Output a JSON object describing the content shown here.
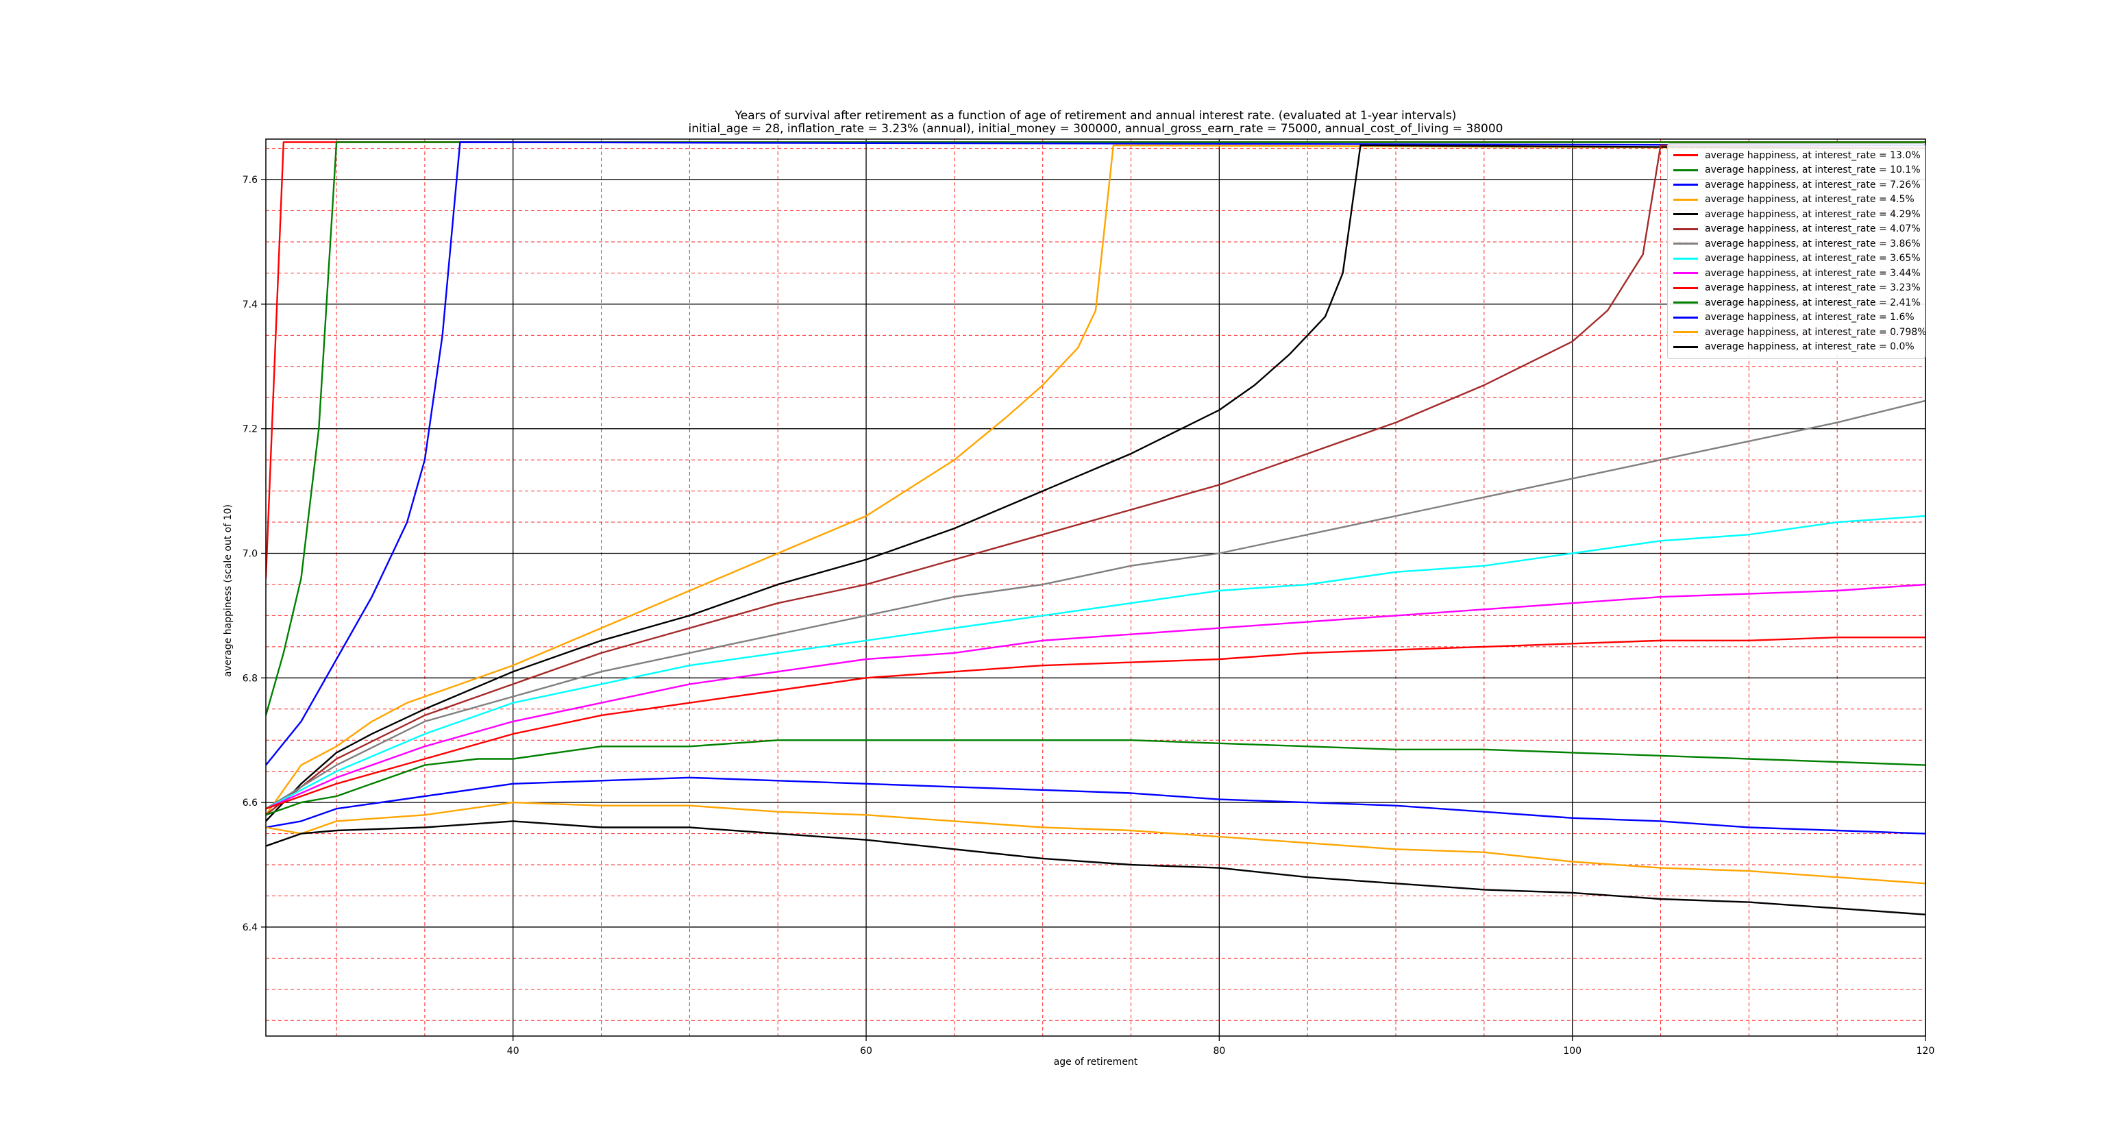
{
  "chart_data": {
    "type": "line",
    "title": "Years of survival after retirement as a function of age of retirement and annual interest rate. (evaluated at 1-year intervals)",
    "subtitle": "initial_age = 28, inflation_rate = 3.23% (annual), initial_money = 300000, annual_gross_earn_rate = 75000, annual_cost_of_living = 38000",
    "xlabel": "age of retirement",
    "ylabel": "average happiness (scale out of 10)",
    "xlim": [
      26,
      120
    ],
    "ylim": [
      6.225,
      7.665
    ],
    "xticks": [
      40,
      60,
      80,
      100,
      120
    ],
    "yticks": [
      6.4,
      6.6,
      6.8,
      7.0,
      7.2,
      7.4,
      7.6
    ],
    "x_minor_grid_step": 5,
    "y_minor_grid_step": 0.05,
    "grid": true,
    "legend_position": "top-right",
    "series": [
      {
        "name": "average happiness, at interest_rate = 13.0%",
        "color": "#ff0000",
        "points": [
          [
            26,
            6.96
          ],
          [
            27,
            7.66
          ],
          [
            120,
            7.66
          ]
        ]
      },
      {
        "name": "average happiness, at interest_rate = 10.1%",
        "color": "#008000",
        "points": [
          [
            26,
            6.74
          ],
          [
            27,
            6.84
          ],
          [
            28,
            6.96
          ],
          [
            29,
            7.2
          ],
          [
            30,
            7.66
          ],
          [
            120,
            7.66
          ]
        ]
      },
      {
        "name": "average happiness, at interest_rate = 7.26%",
        "color": "#0000ff",
        "points": [
          [
            26,
            6.66
          ],
          [
            28,
            6.73
          ],
          [
            30,
            6.83
          ],
          [
            32,
            6.93
          ],
          [
            33,
            6.99
          ],
          [
            34,
            7.05
          ],
          [
            35,
            7.15
          ],
          [
            36,
            7.35
          ],
          [
            37,
            7.66
          ],
          [
            120,
            7.655
          ]
        ]
      },
      {
        "name": "average happiness, at interest_rate = 4.5%",
        "color": "#ffa500",
        "points": [
          [
            26,
            6.58
          ],
          [
            28,
            6.66
          ],
          [
            30,
            6.69
          ],
          [
            32,
            6.73
          ],
          [
            34,
            6.76
          ],
          [
            36,
            6.78
          ],
          [
            40,
            6.82
          ],
          [
            45,
            6.88
          ],
          [
            50,
            6.94
          ],
          [
            55,
            7.0
          ],
          [
            60,
            7.06
          ],
          [
            65,
            7.15
          ],
          [
            68,
            7.22
          ],
          [
            70,
            7.27
          ],
          [
            72,
            7.33
          ],
          [
            73,
            7.39
          ],
          [
            74,
            7.655
          ],
          [
            120,
            7.65
          ]
        ]
      },
      {
        "name": "average happiness, at interest_rate = 4.29%",
        "color": "#000000",
        "points": [
          [
            26,
            6.57
          ],
          [
            28,
            6.63
          ],
          [
            30,
            6.68
          ],
          [
            32,
            6.71
          ],
          [
            35,
            6.75
          ],
          [
            40,
            6.81
          ],
          [
            45,
            6.86
          ],
          [
            50,
            6.9
          ],
          [
            55,
            6.95
          ],
          [
            60,
            6.99
          ],
          [
            65,
            7.04
          ],
          [
            70,
            7.1
          ],
          [
            75,
            7.16
          ],
          [
            80,
            7.23
          ],
          [
            82,
            7.27
          ],
          [
            84,
            7.32
          ],
          [
            86,
            7.38
          ],
          [
            87,
            7.45
          ],
          [
            88,
            7.655
          ],
          [
            120,
            7.65
          ]
        ]
      },
      {
        "name": "average happiness, at interest_rate = 4.07%",
        "color": "#a52a2a",
        "points": [
          [
            26,
            6.58
          ],
          [
            30,
            6.67
          ],
          [
            35,
            6.74
          ],
          [
            40,
            6.79
          ],
          [
            45,
            6.84
          ],
          [
            50,
            6.88
          ],
          [
            55,
            6.92
          ],
          [
            60,
            6.95
          ],
          [
            65,
            6.99
          ],
          [
            70,
            7.03
          ],
          [
            75,
            7.07
          ],
          [
            80,
            7.11
          ],
          [
            85,
            7.16
          ],
          [
            90,
            7.21
          ],
          [
            95,
            7.27
          ],
          [
            100,
            7.34
          ],
          [
            102,
            7.39
          ],
          [
            104,
            7.48
          ],
          [
            105,
            7.655
          ],
          [
            120,
            7.65
          ]
        ]
      },
      {
        "name": "average happiness, at interest_rate = 3.86%",
        "color": "#808080",
        "points": [
          [
            26,
            6.59
          ],
          [
            30,
            6.66
          ],
          [
            35,
            6.73
          ],
          [
            40,
            6.77
          ],
          [
            45,
            6.81
          ],
          [
            50,
            6.84
          ],
          [
            55,
            6.87
          ],
          [
            60,
            6.9
          ],
          [
            65,
            6.93
          ],
          [
            70,
            6.95
          ],
          [
            75,
            6.98
          ],
          [
            80,
            7.0
          ],
          [
            85,
            7.03
          ],
          [
            90,
            7.06
          ],
          [
            95,
            7.09
          ],
          [
            100,
            7.12
          ],
          [
            105,
            7.15
          ],
          [
            110,
            7.18
          ],
          [
            115,
            7.21
          ],
          [
            120,
            7.245
          ]
        ]
      },
      {
        "name": "average happiness, at interest_rate = 3.65%",
        "color": "#00ffff",
        "points": [
          [
            26,
            6.59
          ],
          [
            30,
            6.65
          ],
          [
            35,
            6.71
          ],
          [
            40,
            6.76
          ],
          [
            45,
            6.79
          ],
          [
            50,
            6.82
          ],
          [
            55,
            6.84
          ],
          [
            60,
            6.86
          ],
          [
            65,
            6.88
          ],
          [
            70,
            6.9
          ],
          [
            75,
            6.92
          ],
          [
            80,
            6.94
          ],
          [
            85,
            6.95
          ],
          [
            90,
            6.97
          ],
          [
            95,
            6.98
          ],
          [
            100,
            7.0
          ],
          [
            105,
            7.02
          ],
          [
            110,
            7.03
          ],
          [
            115,
            7.05
          ],
          [
            120,
            7.06
          ]
        ]
      },
      {
        "name": "average happiness, at interest_rate = 3.44%",
        "color": "#ff00ff",
        "points": [
          [
            26,
            6.59
          ],
          [
            30,
            6.64
          ],
          [
            35,
            6.69
          ],
          [
            40,
            6.73
          ],
          [
            45,
            6.76
          ],
          [
            50,
            6.79
          ],
          [
            55,
            6.81
          ],
          [
            60,
            6.83
          ],
          [
            65,
            6.84
          ],
          [
            70,
            6.86
          ],
          [
            75,
            6.87
          ],
          [
            80,
            6.88
          ],
          [
            85,
            6.89
          ],
          [
            90,
            6.9
          ],
          [
            95,
            6.91
          ],
          [
            100,
            6.92
          ],
          [
            105,
            6.93
          ],
          [
            110,
            6.935
          ],
          [
            115,
            6.94
          ],
          [
            120,
            6.95
          ]
        ]
      },
      {
        "name": "average happiness, at interest_rate = 3.23%",
        "color": "#ff0000",
        "points": [
          [
            26,
            6.59
          ],
          [
            30,
            6.63
          ],
          [
            35,
            6.67
          ],
          [
            40,
            6.71
          ],
          [
            45,
            6.74
          ],
          [
            50,
            6.76
          ],
          [
            55,
            6.78
          ],
          [
            60,
            6.8
          ],
          [
            65,
            6.81
          ],
          [
            70,
            6.82
          ],
          [
            75,
            6.825
          ],
          [
            80,
            6.83
          ],
          [
            85,
            6.84
          ],
          [
            90,
            6.845
          ],
          [
            95,
            6.85
          ],
          [
            100,
            6.855
          ],
          [
            105,
            6.86
          ],
          [
            110,
            6.86
          ],
          [
            115,
            6.865
          ],
          [
            120,
            6.865
          ]
        ]
      },
      {
        "name": "average happiness, at interest_rate = 2.41%",
        "color": "#008000",
        "points": [
          [
            26,
            6.58
          ],
          [
            28,
            6.6
          ],
          [
            30,
            6.61
          ],
          [
            32,
            6.63
          ],
          [
            35,
            6.66
          ],
          [
            38,
            6.67
          ],
          [
            40,
            6.67
          ],
          [
            45,
            6.69
          ],
          [
            50,
            6.69
          ],
          [
            55,
            6.7
          ],
          [
            60,
            6.7
          ],
          [
            65,
            6.7
          ],
          [
            70,
            6.7
          ],
          [
            75,
            6.7
          ],
          [
            80,
            6.695
          ],
          [
            85,
            6.69
          ],
          [
            90,
            6.685
          ],
          [
            95,
            6.685
          ],
          [
            100,
            6.68
          ],
          [
            105,
            6.675
          ],
          [
            110,
            6.67
          ],
          [
            115,
            6.665
          ],
          [
            120,
            6.66
          ]
        ]
      },
      {
        "name": "average happiness, at interest_rate = 1.6%",
        "color": "#0000ff",
        "points": [
          [
            26,
            6.56
          ],
          [
            28,
            6.57
          ],
          [
            30,
            6.59
          ],
          [
            35,
            6.61
          ],
          [
            40,
            6.63
          ],
          [
            45,
            6.635
          ],
          [
            50,
            6.64
          ],
          [
            55,
            6.635
          ],
          [
            60,
            6.63
          ],
          [
            65,
            6.625
          ],
          [
            70,
            6.62
          ],
          [
            75,
            6.615
          ],
          [
            80,
            6.605
          ],
          [
            85,
            6.6
          ],
          [
            90,
            6.595
          ],
          [
            95,
            6.585
          ],
          [
            100,
            6.575
          ],
          [
            105,
            6.57
          ],
          [
            110,
            6.56
          ],
          [
            115,
            6.555
          ],
          [
            120,
            6.55
          ]
        ]
      },
      {
        "name": "average happiness, at interest_rate = 0.798%",
        "color": "#ffa500",
        "points": [
          [
            26,
            6.56
          ],
          [
            28,
            6.55
          ],
          [
            30,
            6.57
          ],
          [
            35,
            6.58
          ],
          [
            40,
            6.6
          ],
          [
            45,
            6.595
          ],
          [
            50,
            6.595
          ],
          [
            55,
            6.585
          ],
          [
            60,
            6.58
          ],
          [
            65,
            6.57
          ],
          [
            70,
            6.56
          ],
          [
            75,
            6.555
          ],
          [
            80,
            6.545
          ],
          [
            85,
            6.535
          ],
          [
            90,
            6.525
          ],
          [
            95,
            6.52
          ],
          [
            100,
            6.505
          ],
          [
            105,
            6.495
          ],
          [
            110,
            6.49
          ],
          [
            115,
            6.48
          ],
          [
            120,
            6.47
          ]
        ]
      },
      {
        "name": "average happiness, at interest_rate = 0.0%",
        "color": "#000000",
        "points": [
          [
            26,
            6.53
          ],
          [
            28,
            6.55
          ],
          [
            30,
            6.555
          ],
          [
            35,
            6.56
          ],
          [
            40,
            6.57
          ],
          [
            45,
            6.56
          ],
          [
            50,
            6.56
          ],
          [
            55,
            6.55
          ],
          [
            60,
            6.54
          ],
          [
            65,
            6.525
          ],
          [
            70,
            6.51
          ],
          [
            75,
            6.5
          ],
          [
            80,
            6.495
          ],
          [
            85,
            6.48
          ],
          [
            90,
            6.47
          ],
          [
            95,
            6.46
          ],
          [
            100,
            6.455
          ],
          [
            105,
            6.445
          ],
          [
            110,
            6.44
          ],
          [
            115,
            6.43
          ],
          [
            120,
            6.42
          ]
        ]
      }
    ]
  }
}
